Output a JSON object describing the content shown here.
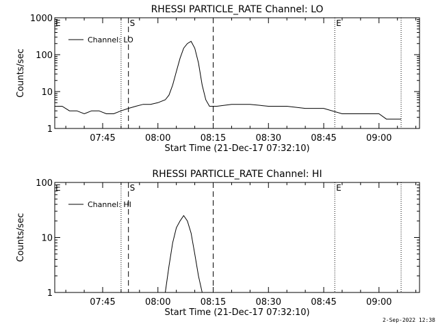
{
  "footer": {
    "timestamp": "2-Sep-2022 12:38"
  },
  "chart_data": [
    {
      "type": "line",
      "title": "RHESSI PARTICLE_RATE Channel: LO",
      "xlabel": "Start Time (21-Dec-17 07:32:10)",
      "ylabel": "Counts/sec",
      "yscale": "log",
      "xlim": [
        "07:32",
        "09:11"
      ],
      "ylim": [
        1,
        1000
      ],
      "xticks": [
        "07:45",
        "08:00",
        "08:15",
        "08:30",
        "08:45",
        "09:00"
      ],
      "yticks": [
        "1",
        "10",
        "100",
        "1000"
      ],
      "grid": false,
      "legend": {
        "position": "top-left",
        "entries": [
          "Channel: LO"
        ]
      },
      "markers": [
        {
          "time": "07:50",
          "style": "dotted",
          "label": ""
        },
        {
          "time": "07:52",
          "style": "dashed",
          "label": "S"
        },
        {
          "time": "08:15",
          "style": "dashed",
          "label": ""
        },
        {
          "time": "08:48",
          "style": "dotted",
          "label": "E"
        },
        {
          "time": "09:06",
          "style": "dotted",
          "label": ""
        }
      ],
      "series": [
        {
          "name": "Channel: LO",
          "x": [
            "07:32",
            "07:34",
            "07:36",
            "07:38",
            "07:40",
            "07:42",
            "07:44",
            "07:46",
            "07:48",
            "07:50",
            "07:52",
            "07:54",
            "07:56",
            "07:58",
            "08:00",
            "08:02",
            "08:03",
            "08:04",
            "08:05",
            "08:06",
            "08:07",
            "08:08",
            "08:09",
            "08:10",
            "08:11",
            "08:12",
            "08:13",
            "08:14",
            "08:15",
            "08:16",
            "08:20",
            "08:25",
            "08:30",
            "08:35",
            "08:40",
            "08:45",
            "08:50",
            "08:55",
            "09:00",
            "09:02",
            "09:06"
          ],
          "values": [
            4,
            4,
            3,
            3,
            2.5,
            3,
            3,
            2.5,
            2.5,
            3,
            3.5,
            4,
            4.5,
            4.5,
            5,
            6,
            8,
            15,
            35,
            80,
            150,
            200,
            230,
            150,
            60,
            15,
            6,
            4,
            4,
            4,
            4.5,
            4.5,
            4,
            4,
            3.5,
            3.5,
            2.5,
            2.5,
            2.5,
            1.8,
            1.8
          ]
        }
      ]
    },
    {
      "type": "line",
      "title": "RHESSI PARTICLE_RATE Channel: HI",
      "xlabel": "Start Time (21-Dec-17 07:32:10)",
      "ylabel": "Counts/sec",
      "yscale": "log",
      "xlim": [
        "07:32",
        "09:11"
      ],
      "ylim": [
        1,
        100
      ],
      "xticks": [
        "07:45",
        "08:00",
        "08:15",
        "08:30",
        "08:45",
        "09:00"
      ],
      "yticks": [
        "1",
        "10",
        "100"
      ],
      "grid": false,
      "legend": {
        "position": "top-left",
        "entries": [
          "Channel: HI"
        ]
      },
      "markers": [
        {
          "time": "07:50",
          "style": "dotted",
          "label": ""
        },
        {
          "time": "07:52",
          "style": "dashed",
          "label": "S"
        },
        {
          "time": "08:15",
          "style": "dashed",
          "label": ""
        },
        {
          "time": "08:48",
          "style": "dotted",
          "label": "E"
        },
        {
          "time": "09:06",
          "style": "dotted",
          "label": ""
        }
      ],
      "series": [
        {
          "name": "Channel: HI",
          "x": [
            "08:02",
            "08:03",
            "08:04",
            "08:05",
            "08:06",
            "08:07",
            "08:08",
            "08:09",
            "08:10",
            "08:11",
            "08:12"
          ],
          "values": [
            1,
            3,
            8,
            15,
            20,
            25,
            20,
            12,
            5,
            2,
            1
          ]
        }
      ]
    }
  ]
}
